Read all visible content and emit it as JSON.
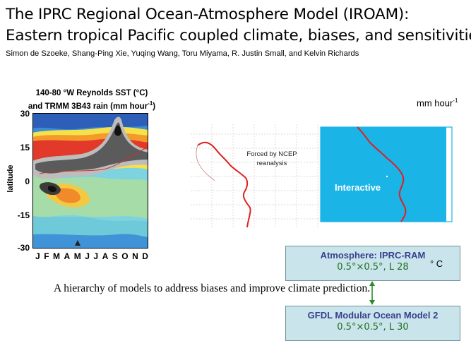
{
  "title_line1": "The IPRC Regional Ocean-Atmosphere Model (IROAM):",
  "title_line2": "Eastern tropical Pacific coupled climate, biases, and sensitivities",
  "authors": "Simon de Szoeke, Shang-Ping Xie, Yuqing Wang, Toru Miyama, R. Justin Small, and Kelvin Richards",
  "left_figure": {
    "caption_line1": "140-80 °W Reynolds SST (°C)",
    "caption_line2_main": "and TRMM 3B43 rain (mm hour",
    "caption_line2_sup": "-1",
    "caption_line2_end": ")",
    "ylabel": "latitude",
    "yticks": [
      "30",
      "15",
      "0",
      "-15",
      "-30"
    ],
    "xticks": [
      "J",
      "F",
      "M",
      "A",
      "M",
      "J",
      "J",
      "A",
      "S",
      "O",
      "N",
      "D"
    ]
  },
  "units_right": {
    "main": "mm hour",
    "sup": "-1"
  },
  "map": {
    "forced_label": "Forced by NCEP reanalysis",
    "interactive_label": "Interactive"
  },
  "atmosphere_box": {
    "title": "Atmosphere: IPRC-RAM",
    "resolution": "0.5°×0.5°, L 28"
  },
  "ocean_box": {
    "title": "GFDL Modular Ocean Model 2",
    "resolution": "0.5°×0.5°, L 30"
  },
  "degree_c": "° C",
  "subtitle": "A hierarchy of models to address biases and improve climate prediction.",
  "colors": {
    "interactive_domain": "#1ab4e6",
    "coast": "#e02020",
    "box_fill": "#c9e5eb",
    "box_title": "#3a3f8f",
    "box_resolution": "#1f6d1f",
    "arrow": "#2a8a2a"
  }
}
